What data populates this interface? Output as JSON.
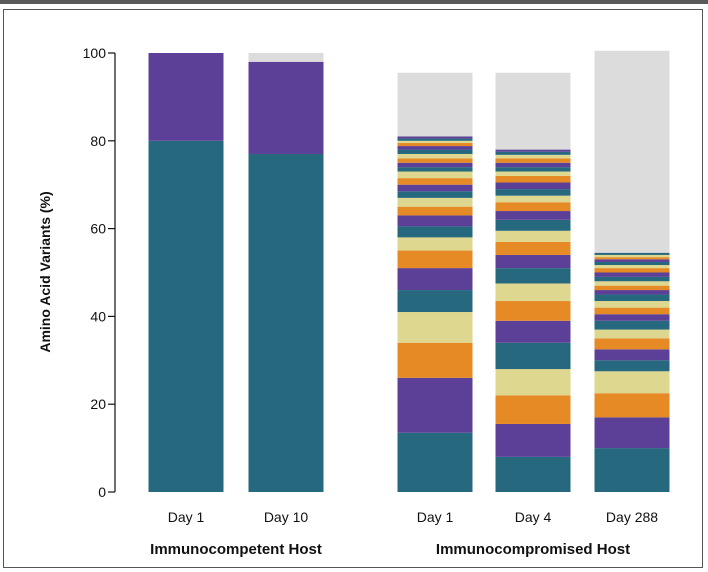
{
  "chart_data": {
    "type": "bar",
    "stacked": true,
    "title": "",
    "xlabel": "",
    "ylabel": "Amino Acid Variants (%)",
    "ylim": [
      0,
      100
    ],
    "yticks": [
      0,
      20,
      40,
      60,
      80,
      100
    ],
    "grid": false,
    "legend": "none",
    "groups": [
      {
        "label": "Immunocompetent Host",
        "categories": [
          "Day 1",
          "Day 10"
        ]
      },
      {
        "label": "Immunocompromised Host",
        "categories": [
          "Day 1",
          "Day 4",
          "Day 288"
        ]
      }
    ],
    "palette": {
      "teal": "#26697e",
      "purple": "#5c3f97",
      "orange": "#e58a25",
      "khaki": "#ddd78f",
      "remainder": "#dcdcdc"
    },
    "bars": [
      {
        "group": 0,
        "category": "Day 1",
        "segments": [
          {
            "color": "teal",
            "value": 80
          },
          {
            "color": "purple",
            "value": 20
          }
        ]
      },
      {
        "group": 0,
        "category": "Day 10",
        "segments": [
          {
            "color": "teal",
            "value": 77
          },
          {
            "color": "purple",
            "value": 21
          },
          {
            "color": "remainder",
            "value": 2
          }
        ]
      },
      {
        "group": 1,
        "category": "Day 1",
        "segments": [
          {
            "color": "teal",
            "value": 13.5
          },
          {
            "color": "purple",
            "value": 12.5
          },
          {
            "color": "orange",
            "value": 8
          },
          {
            "color": "khaki",
            "value": 7
          },
          {
            "color": "teal",
            "value": 5
          },
          {
            "color": "purple",
            "value": 5
          },
          {
            "color": "orange",
            "value": 4
          },
          {
            "color": "khaki",
            "value": 3
          },
          {
            "color": "teal",
            "value": 2.5
          },
          {
            "color": "purple",
            "value": 2.5
          },
          {
            "color": "orange",
            "value": 2
          },
          {
            "color": "khaki",
            "value": 2
          },
          {
            "color": "teal",
            "value": 1.5
          },
          {
            "color": "purple",
            "value": 1.5
          },
          {
            "color": "orange",
            "value": 1.5
          },
          {
            "color": "khaki",
            "value": 1.5
          },
          {
            "color": "teal",
            "value": 1
          },
          {
            "color": "purple",
            "value": 1
          },
          {
            "color": "orange",
            "value": 1
          },
          {
            "color": "khaki",
            "value": 1
          },
          {
            "color": "teal",
            "value": 1
          },
          {
            "color": "purple",
            "value": 0.8
          },
          {
            "color": "orange",
            "value": 0.7
          },
          {
            "color": "khaki",
            "value": 0.5
          },
          {
            "color": "teal",
            "value": 0.5
          },
          {
            "color": "purple",
            "value": 0.5
          },
          {
            "color": "remainder",
            "value": 14.5
          }
        ]
      },
      {
        "group": 1,
        "category": "Day 4",
        "segments": [
          {
            "color": "teal",
            "value": 8
          },
          {
            "color": "purple",
            "value": 7.5
          },
          {
            "color": "orange",
            "value": 6.5
          },
          {
            "color": "khaki",
            "value": 6
          },
          {
            "color": "teal",
            "value": 6
          },
          {
            "color": "purple",
            "value": 5
          },
          {
            "color": "orange",
            "value": 4.5
          },
          {
            "color": "khaki",
            "value": 4
          },
          {
            "color": "teal",
            "value": 3.5
          },
          {
            "color": "purple",
            "value": 3
          },
          {
            "color": "orange",
            "value": 3
          },
          {
            "color": "khaki",
            "value": 2.5
          },
          {
            "color": "teal",
            "value": 2.5
          },
          {
            "color": "purple",
            "value": 2
          },
          {
            "color": "orange",
            "value": 2
          },
          {
            "color": "khaki",
            "value": 1.5
          },
          {
            "color": "teal",
            "value": 1.5
          },
          {
            "color": "purple",
            "value": 1.5
          },
          {
            "color": "orange",
            "value": 1.5
          },
          {
            "color": "khaki",
            "value": 1
          },
          {
            "color": "teal",
            "value": 1
          },
          {
            "color": "purple",
            "value": 1
          },
          {
            "color": "orange",
            "value": 1
          },
          {
            "color": "khaki",
            "value": 0.8
          },
          {
            "color": "teal",
            "value": 0.7
          },
          {
            "color": "purple",
            "value": 0.5
          },
          {
            "color": "remainder",
            "value": 17.5
          }
        ]
      },
      {
        "group": 1,
        "category": "Day 288",
        "segments": [
          {
            "color": "teal",
            "value": 10
          },
          {
            "color": "purple",
            "value": 7
          },
          {
            "color": "orange",
            "value": 5.5
          },
          {
            "color": "khaki",
            "value": 5
          },
          {
            "color": "teal",
            "value": 2.5
          },
          {
            "color": "purple",
            "value": 2.5
          },
          {
            "color": "orange",
            "value": 2.5
          },
          {
            "color": "khaki",
            "value": 2
          },
          {
            "color": "teal",
            "value": 2
          },
          {
            "color": "purple",
            "value": 1.5
          },
          {
            "color": "orange",
            "value": 1.5
          },
          {
            "color": "khaki",
            "value": 1.5
          },
          {
            "color": "teal",
            "value": 1.5
          },
          {
            "color": "purple",
            "value": 1
          },
          {
            "color": "orange",
            "value": 1
          },
          {
            "color": "khaki",
            "value": 1
          },
          {
            "color": "teal",
            "value": 1
          },
          {
            "color": "purple",
            "value": 1
          },
          {
            "color": "orange",
            "value": 1
          },
          {
            "color": "khaki",
            "value": 0.7
          },
          {
            "color": "teal",
            "value": 0.7
          },
          {
            "color": "purple",
            "value": 0.6
          },
          {
            "color": "orange",
            "value": 0.5
          },
          {
            "color": "khaki",
            "value": 0.5
          },
          {
            "color": "teal",
            "value": 0.5
          },
          {
            "color": "remainder",
            "value": 46
          }
        ]
      }
    ]
  }
}
